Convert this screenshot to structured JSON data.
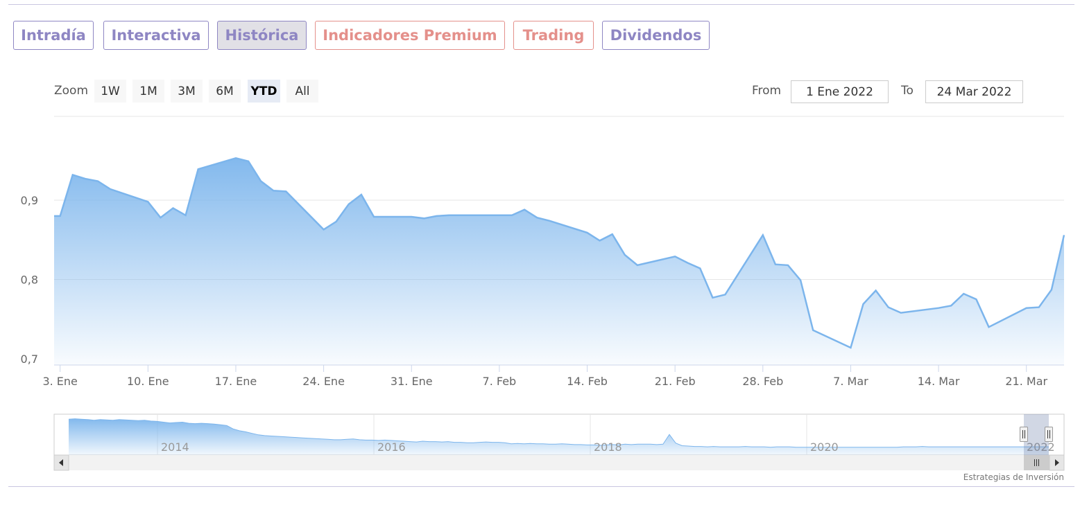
{
  "tabs": [
    {
      "label": "Intradía",
      "color": "#8e86c3",
      "active": false
    },
    {
      "label": "Interactiva",
      "color": "#8e86c3",
      "active": false
    },
    {
      "label": "Histórica",
      "color": "#8e86c3",
      "active": true
    },
    {
      "label": "Indicadores Premium",
      "color": "#e4908b",
      "active": false
    },
    {
      "label": "Trading",
      "color": "#e4908b",
      "active": false
    },
    {
      "label": "Dividendos",
      "color": "#8e86c3",
      "active": false
    }
  ],
  "range_selector": {
    "zoom_label": "Zoom",
    "buttons": [
      "1W",
      "1M",
      "3M",
      "6M",
      "YTD",
      "All"
    ],
    "selected": "YTD",
    "from_label": "From",
    "from_value": "1 Ene 2022",
    "to_label": "To",
    "to_value": "24 Mar 2022"
  },
  "credit": "Estrategias de Inversión",
  "colors": {
    "series": "#7cb5ec",
    "grid": "#e6e6e6"
  },
  "chart_data": {
    "type": "area",
    "title": "",
    "ylim": [
      0.7,
      0.9
    ],
    "yticks": [
      0.7,
      0.8,
      0.9
    ],
    "ytick_labels": [
      "0,7",
      "0,8",
      "0,9"
    ],
    "xticks": [
      "3. Ene",
      "10. Ene",
      "17. Ene",
      "24. Ene",
      "31. Ene",
      "7. Feb",
      "14. Feb",
      "21. Feb",
      "28. Feb",
      "7. Mar",
      "14. Mar",
      "21. Mar"
    ],
    "x": [
      "2022-01-03",
      "2022-01-04",
      "2022-01-05",
      "2022-01-06",
      "2022-01-07",
      "2022-01-10",
      "2022-01-11",
      "2022-01-12",
      "2022-01-13",
      "2022-01-14",
      "2022-01-17",
      "2022-01-18",
      "2022-01-19",
      "2022-01-20",
      "2022-01-21",
      "2022-01-24",
      "2022-01-25",
      "2022-01-26",
      "2022-01-27",
      "2022-01-28",
      "2022-01-31",
      "2022-02-01",
      "2022-02-02",
      "2022-02-03",
      "2022-02-04",
      "2022-02-07",
      "2022-02-08",
      "2022-02-09",
      "2022-02-10",
      "2022-02-11",
      "2022-02-14",
      "2022-02-15",
      "2022-02-16",
      "2022-02-17",
      "2022-02-18",
      "2022-02-21",
      "2022-02-22",
      "2022-02-23",
      "2022-02-24",
      "2022-02-25",
      "2022-02-28",
      "2022-03-01",
      "2022-03-02",
      "2022-03-03",
      "2022-03-04",
      "2022-03-07",
      "2022-03-08",
      "2022-03-09",
      "2022-03-10",
      "2022-03-11",
      "2022-03-14",
      "2022-03-15",
      "2022-03-16",
      "2022-03-17",
      "2022-03-18",
      "2022-03-21",
      "2022-03-22",
      "2022-03-23",
      "2022-03-24"
    ],
    "values": [
      0.88,
      0.932,
      0.927,
      0.924,
      0.914,
      0.898,
      0.878,
      0.89,
      0.881,
      0.939,
      0.953,
      0.949,
      0.924,
      0.912,
      0.911,
      0.863,
      0.873,
      0.895,
      0.907,
      0.879,
      0.879,
      0.877,
      0.88,
      0.881,
      0.881,
      0.881,
      0.881,
      0.888,
      0.878,
      0.874,
      0.859,
      0.849,
      0.857,
      0.831,
      0.818,
      0.829,
      0.821,
      0.814,
      0.777,
      0.781,
      0.856,
      0.819,
      0.818,
      0.799,
      0.736,
      0.714,
      0.769,
      0.786,
      0.765,
      0.758,
      0.764,
      0.767,
      0.782,
      0.775,
      0.74,
      0.764,
      0.765,
      0.787,
      0.856
    ],
    "navigator": {
      "x_labels": [
        "2014",
        "2016",
        "2018",
        "2020",
        "2022"
      ],
      "values": [
        0.96,
        0.97,
        0.96,
        0.95,
        0.93,
        0.95,
        0.94,
        0.93,
        0.95,
        0.94,
        0.93,
        0.92,
        0.93,
        0.91,
        0.9,
        0.88,
        0.86,
        0.87,
        0.88,
        0.85,
        0.84,
        0.85,
        0.84,
        0.83,
        0.81,
        0.79,
        0.7,
        0.65,
        0.62,
        0.58,
        0.54,
        0.52,
        0.51,
        0.5,
        0.49,
        0.48,
        0.47,
        0.46,
        0.45,
        0.44,
        0.43,
        0.42,
        0.41,
        0.41,
        0.42,
        0.43,
        0.41,
        0.4,
        0.4,
        0.39,
        0.4,
        0.39,
        0.38,
        0.37,
        0.36,
        0.35,
        0.37,
        0.36,
        0.36,
        0.35,
        0.36,
        0.34,
        0.34,
        0.33,
        0.33,
        0.34,
        0.35,
        0.34,
        0.34,
        0.33,
        0.3,
        0.31,
        0.3,
        0.31,
        0.3,
        0.3,
        0.29,
        0.29,
        0.3,
        0.29,
        0.28,
        0.28,
        0.27,
        0.27,
        0.26,
        0.27,
        0.28,
        0.27,
        0.29,
        0.28,
        0.29,
        0.29,
        0.29,
        0.28,
        0.29,
        0.55,
        0.32,
        0.25,
        0.24,
        0.23,
        0.23,
        0.22,
        0.23,
        0.22,
        0.22,
        0.22,
        0.22,
        0.23,
        0.22,
        0.22,
        0.22,
        0.21,
        0.22,
        0.22,
        0.22,
        0.21,
        0.21,
        0.21,
        0.21,
        0.21,
        0.21,
        0.21,
        0.21,
        0.21,
        0.21,
        0.21,
        0.21,
        0.21,
        0.21,
        0.21,
        0.21,
        0.21,
        0.22,
        0.22,
        0.22,
        0.23,
        0.22,
        0.22,
        0.22,
        0.22,
        0.22,
        0.22,
        0.22,
        0.22,
        0.22,
        0.22,
        0.22,
        0.22,
        0.22,
        0.22,
        0.22,
        0.22,
        0.22,
        0.22,
        0.22,
        0.22
      ]
    }
  }
}
